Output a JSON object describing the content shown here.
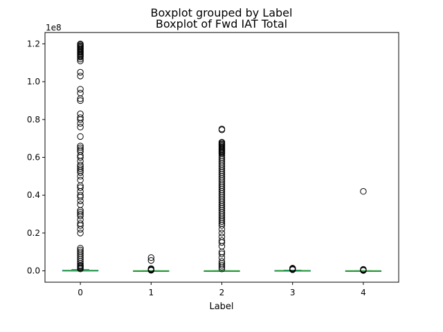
{
  "chart_data": {
    "type": "boxplot",
    "suptitle": "Boxplot grouped by Label",
    "title": "Boxplot of Fwd IAT Total",
    "xlabel": "Label",
    "ylabel": "",
    "y_offset_label": "1e8",
    "ylim": [
      -0.06,
      1.26
    ],
    "y_ticks": [
      0.0,
      0.2,
      0.4,
      0.6,
      0.8,
      1.0,
      1.2
    ],
    "y_tick_labels": [
      "0.0",
      "0.2",
      "0.4",
      "0.6",
      "0.8",
      "1.0",
      "1.2"
    ],
    "categories": [
      "0",
      "1",
      "2",
      "3",
      "4"
    ],
    "grid": false,
    "colors": {
      "box": "#1f77b4",
      "median": "#2ca02c",
      "flier": "#000000",
      "axes": "#000000"
    },
    "boxes": [
      {
        "category": "0",
        "q1": 0.0,
        "median": 0.001,
        "q3": 0.003,
        "whisker_low": 0.0,
        "whisker_high": 0.007,
        "fliers": [
          1.2,
          1.195,
          1.19,
          1.185,
          1.18,
          1.175,
          1.17,
          1.165,
          1.16,
          1.155,
          1.15,
          1.145,
          1.14,
          1.135,
          1.13,
          1.12,
          1.11,
          1.05,
          1.03,
          0.96,
          0.94,
          0.91,
          0.9,
          0.83,
          0.81,
          0.8,
          0.78,
          0.76,
          0.71,
          0.66,
          0.65,
          0.64,
          0.63,
          0.61,
          0.6,
          0.58,
          0.56,
          0.55,
          0.54,
          0.53,
          0.52,
          0.5,
          0.48,
          0.45,
          0.44,
          0.42,
          0.4,
          0.39,
          0.37,
          0.35,
          0.32,
          0.31,
          0.3,
          0.29,
          0.27,
          0.25,
          0.24,
          0.22,
          0.2,
          0.12,
          0.11,
          0.1,
          0.09,
          0.08,
          0.07,
          0.06,
          0.05,
          0.04,
          0.03,
          0.025,
          0.02,
          0.015,
          0.01
        ]
      },
      {
        "category": "1",
        "q1": 0.0,
        "median": 0.0,
        "q3": 0.0005,
        "whisker_low": 0.0,
        "whisker_high": 0.001,
        "fliers": [
          0.07,
          0.055,
          0.012,
          0.008,
          0.005,
          0.003
        ]
      },
      {
        "category": "2",
        "q1": 0.0,
        "median": 0.0,
        "q3": 0.0005,
        "whisker_low": 0.0,
        "whisker_high": 0.001,
        "fliers": [
          0.75,
          0.745,
          0.68,
          0.675,
          0.67,
          0.665,
          0.66,
          0.655,
          0.65,
          0.645,
          0.64,
          0.635,
          0.63,
          0.625,
          0.62,
          0.61,
          0.6,
          0.59,
          0.58,
          0.57,
          0.56,
          0.55,
          0.54,
          0.53,
          0.52,
          0.51,
          0.5,
          0.49,
          0.48,
          0.47,
          0.46,
          0.45,
          0.44,
          0.43,
          0.42,
          0.41,
          0.4,
          0.39,
          0.38,
          0.37,
          0.36,
          0.35,
          0.34,
          0.33,
          0.32,
          0.31,
          0.3,
          0.29,
          0.28,
          0.27,
          0.26,
          0.25,
          0.24,
          0.22,
          0.2,
          0.18,
          0.16,
          0.15,
          0.13,
          0.1,
          0.09,
          0.07,
          0.05,
          0.04,
          0.03,
          0.02,
          0.01
        ]
      },
      {
        "category": "3",
        "q1": 0.0,
        "median": 0.001,
        "q3": 0.002,
        "whisker_low": 0.0,
        "whisker_high": 0.004,
        "fliers": [
          0.014,
          0.011,
          0.008,
          0.006
        ]
      },
      {
        "category": "4",
        "q1": 0.0,
        "median": 0.0,
        "q3": 0.0005,
        "whisker_low": 0.0,
        "whisker_high": 0.001,
        "fliers": [
          0.42,
          0.008,
          0.005,
          0.003,
          0.002
        ]
      }
    ]
  }
}
